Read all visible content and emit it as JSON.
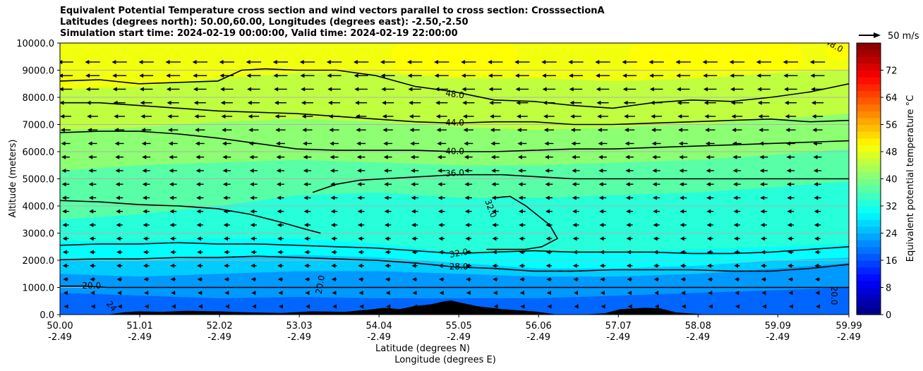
{
  "chart_data": {
    "type": "contour_cross_section",
    "title_lines": [
      "Equivalent Potential Temperature cross section and wind vectors parallel to cross section: CrosssectionA",
      "Latitudes (degrees north): 50.00,60.00, Longitudes (degrees east): -2.50,-2.50",
      "Simulation start time: 2024-02-19 00:00:00, Valid time: 2024-02-19 22:00:00"
    ],
    "ylabel": "Altitude (meters)",
    "xlabel_lat": "Latitude (degrees N)",
    "xlabel_lon": "Longitude (degrees E)",
    "ylim": [
      0,
      10000
    ],
    "y_ticks": [
      "0.0",
      "1000.0",
      "2000.0",
      "3000.0",
      "4000.0",
      "5000.0",
      "6000.0",
      "7000.0",
      "8000.0",
      "9000.0",
      "10000.0"
    ],
    "y_tick_values": [
      0,
      1000,
      2000,
      3000,
      4000,
      5000,
      6000,
      7000,
      8000,
      9000,
      10000
    ],
    "x_ticks_lat": [
      "50.00",
      "51.01",
      "52.02",
      "53.03",
      "54.04",
      "55.05",
      "56.06",
      "57.07",
      "58.08",
      "59.09",
      "59.99"
    ],
    "x_ticks_lon": [
      "-2.49",
      "-2.49",
      "-2.49",
      "-2.49",
      "-2.49",
      "-2.49",
      "-2.49",
      "-2.49",
      "-2.49",
      "-2.49",
      "-2.49"
    ],
    "x_tick_values": [
      50.0,
      51.01,
      52.02,
      53.03,
      54.04,
      55.05,
      56.06,
      57.07,
      58.08,
      59.09,
      59.99
    ],
    "xlim": [
      50.0,
      59.99
    ],
    "colorbar": {
      "label": "Equivalent potential temperature °C",
      "ticks": [
        "0",
        "8",
        "16",
        "24",
        "32",
        "40",
        "48",
        "56",
        "64",
        "72"
      ],
      "tick_values": [
        0,
        8,
        16,
        24,
        32,
        40,
        48,
        56,
        64,
        72
      ],
      "range": [
        0,
        80
      ]
    },
    "quiver_key": "50 m/s",
    "wind_direction": "southward along section",
    "filled_bands": [
      {
        "theta": 18,
        "top_alt": [
          800,
          700,
          600,
          650,
          600,
          600,
          600,
          700,
          800,
          900,
          1000
        ]
      },
      {
        "theta": 22,
        "top_alt": [
          1500,
          1400,
          1500,
          1600,
          1600,
          1500,
          1400,
          1400,
          1500,
          1700,
          1900
        ]
      },
      {
        "theta": 26,
        "top_alt": [
          2000,
          2000,
          2100,
          2200,
          2100,
          1900,
          1700,
          1700,
          1800,
          2000,
          2100
        ]
      },
      {
        "theta": 30,
        "top_alt": [
          2700,
          2700,
          2800,
          2800,
          2600,
          2300,
          2300,
          2300,
          2400,
          2500,
          2600
        ]
      },
      {
        "theta": 33,
        "top_alt": [
          3500,
          3700,
          4000,
          4400,
          4500,
          4300,
          4300,
          4400,
          4500,
          4700,
          4900
        ]
      },
      {
        "theta": 37,
        "top_alt": [
          5300,
          5500,
          5600,
          5700,
          5600,
          5500,
          5500,
          5600,
          5700,
          5900,
          6100
        ]
      },
      {
        "theta": 41,
        "top_alt": [
          6800,
          6900,
          7100,
          7200,
          7100,
          6900,
          6800,
          6900,
          7000,
          7200,
          7400
        ]
      },
      {
        "theta": 45,
        "top_alt": [
          8300,
          8400,
          8700,
          8900,
          8900,
          8700,
          8700,
          8600,
          8700,
          8900,
          9000
        ]
      },
      {
        "theta": 49,
        "top_alt": [
          10000,
          10000,
          10000,
          10000,
          10000,
          10000,
          10000,
          10000,
          10000,
          10000,
          10000
        ]
      }
    ],
    "yellow_patches": [
      {
        "theta": 50,
        "x": [
          54.2,
          55.8
        ],
        "alt": [
          8900,
          10000
        ]
      },
      {
        "theta": 50,
        "x": [
          57.2,
          59.4
        ],
        "alt": [
          9000,
          10000
        ]
      },
      {
        "theta": 50,
        "x": [
          59.7,
          59.99
        ],
        "alt": [
          9400,
          10000
        ]
      }
    ],
    "contours": [
      {
        "label": "20.0",
        "x": [
          50.0,
          50.3,
          50.6,
          50.9,
          51.3,
          51.7,
          52.1,
          52.5,
          52.9,
          53.3,
          53.7,
          54.1,
          54.5,
          54.9,
          55.3,
          55.7,
          56.1,
          56.5,
          56.9,
          57.3,
          57.7,
          58.1,
          58.5,
          58.9,
          59.3,
          59.99
        ],
        "alt": [
          1050,
          1050,
          1000,
          1000,
          1000,
          1000,
          1000,
          1000,
          1000,
          1000,
          1000,
          1000,
          1000,
          1000,
          1000,
          1000,
          1000,
          1000,
          1000,
          1000,
          1000,
          1000,
          1000,
          1000,
          1000,
          1000
        ]
      },
      {
        "label": "28.0",
        "x": [
          50.0,
          50.5,
          51.0,
          51.5,
          52.0,
          52.5,
          53.0,
          53.5,
          54.0,
          54.5,
          55.0,
          55.5,
          56.0,
          56.5,
          57.0,
          57.5,
          58.0,
          58.5,
          59.0,
          59.5,
          59.99
        ],
        "alt": [
          2020,
          2050,
          2050,
          2100,
          2100,
          2150,
          2100,
          2050,
          2000,
          1900,
          1750,
          1700,
          1600,
          1600,
          1650,
          1650,
          1650,
          1600,
          1600,
          1700,
          1850
        ]
      },
      {
        "label": "32.0",
        "x": [
          50.0,
          50.5,
          51.0,
          51.5,
          52.0,
          52.5,
          53.0,
          53.5,
          54.0,
          54.5,
          55.0,
          55.5,
          56.0,
          56.5,
          57.0,
          57.5,
          58.0,
          58.5,
          59.0,
          59.5,
          59.99
        ],
        "alt": [
          2550,
          2600,
          2600,
          2650,
          2600,
          2600,
          2550,
          2500,
          2450,
          2350,
          2250,
          2300,
          2350,
          2300,
          2300,
          2300,
          2250,
          2250,
          2300,
          2400,
          2500
        ]
      },
      {
        "label": "36.0",
        "x": [
          53.2,
          53.5,
          53.8,
          54.1,
          54.4,
          54.7,
          55.0,
          55.3,
          55.6,
          55.9,
          56.2,
          56.5,
          56.8,
          57.1,
          57.4,
          57.7,
          58.0,
          58.3,
          58.6,
          58.9,
          59.2,
          59.5,
          59.8,
          59.99
        ],
        "alt": [
          4500,
          4800,
          4950,
          5000,
          5050,
          5100,
          5150,
          5150,
          5150,
          5100,
          5050,
          5000,
          5000,
          5000,
          5000,
          5000,
          5000,
          5000,
          5000,
          5000,
          5000,
          5000,
          5000,
          5000
        ]
      },
      {
        "label": "40.0",
        "x": [
          50.0,
          50.5,
          51.0,
          51.5,
          52.0,
          52.5,
          53.0,
          53.5,
          54.0,
          54.5,
          55.0,
          55.5,
          56.0,
          56.5,
          57.0,
          57.5,
          58.0,
          58.5,
          59.0,
          59.5,
          59.99
        ],
        "alt": [
          6700,
          6750,
          6750,
          6650,
          6500,
          6300,
          6100,
          6050,
          6050,
          6050,
          6000,
          6000,
          6050,
          6100,
          6100,
          6150,
          6200,
          6250,
          6300,
          6350,
          6400
        ]
      },
      {
        "label": "44.0",
        "x": [
          50.0,
          50.5,
          51.0,
          51.5,
          52.0,
          52.5,
          53.0,
          53.5,
          54.0,
          54.5,
          55.0,
          55.5,
          56.0,
          56.5,
          57.0,
          57.5,
          58.0,
          58.5,
          59.0,
          59.5,
          59.99
        ],
        "alt": [
          7800,
          7800,
          7700,
          7600,
          7500,
          7450,
          7400,
          7300,
          7200,
          7100,
          7050,
          7100,
          7100,
          7000,
          7000,
          7050,
          7100,
          7150,
          7200,
          7100,
          7150
        ]
      },
      {
        "label": "48.0",
        "x": [
          50.0,
          50.5,
          51.0,
          51.5,
          52.0,
          52.3,
          52.6,
          53.0,
          53.5,
          54.0,
          54.5,
          55.0,
          55.5,
          56.0,
          56.5,
          57.0,
          57.5,
          58.0,
          58.5,
          59.0,
          59.5,
          59.99
        ],
        "alt": [
          8600,
          8650,
          8500,
          8550,
          8600,
          9000,
          9050,
          9000,
          9000,
          8800,
          8400,
          8200,
          7900,
          7850,
          7700,
          7600,
          7800,
          7900,
          7850,
          8000,
          8200,
          8500
        ]
      }
    ],
    "closed_contours": [
      {
        "label": "32.0",
        "x": [
          53.3,
          53.1,
          52.8,
          52.4,
          52.0,
          51.5,
          51.0,
          50.5,
          50.0
        ],
        "alt": [
          3000,
          3150,
          3400,
          3700,
          3900,
          4000,
          4050,
          4150,
          4200
        ]
      },
      {
        "label": "32.0",
        "x": [
          55.5,
          55.7,
          55.9,
          56.2,
          56.3,
          56.1,
          55.9,
          55.6,
          55.4
        ],
        "alt": [
          4300,
          4350,
          4000,
          3300,
          2800,
          2500,
          2400,
          2400,
          2400
        ]
      }
    ],
    "inline_labels": [
      {
        "text": "48.0",
        "x": 55.0,
        "alt": 8100,
        "angle": 8
      },
      {
        "text": "44.0",
        "x": 55.0,
        "alt": 7050,
        "angle": 0
      },
      {
        "text": "40.0",
        "x": 55.0,
        "alt": 6000,
        "angle": 0
      },
      {
        "text": "36.0",
        "x": 55.0,
        "alt": 5200,
        "angle": -3
      },
      {
        "text": "32.0",
        "x": 55.45,
        "alt": 3900,
        "angle": 70
      },
      {
        "text": "32.0",
        "x": 55.05,
        "alt": 2250,
        "angle": -10
      },
      {
        "text": "28.0",
        "x": 55.05,
        "alt": 1750,
        "angle": 0
      },
      {
        "text": "20.0",
        "x": 50.4,
        "alt": 1050,
        "angle": 0
      },
      {
        "text": "20.0",
        "x": 53.3,
        "alt": 1100,
        "angle": -80
      },
      {
        "text": "20.0",
        "x": 59.8,
        "alt": 700,
        "angle": 90
      },
      {
        "text": "24",
        "x": 50.65,
        "alt": 300,
        "angle": 50
      },
      {
        "text": "48.0",
        "x": 59.8,
        "alt": 9900,
        "angle": 30
      }
    ],
    "terrain": {
      "x": [
        50.0,
        50.6,
        50.8,
        51.0,
        51.3,
        51.6,
        52.0,
        52.4,
        52.8,
        53.2,
        53.6,
        53.9,
        54.1,
        54.3,
        54.5,
        54.7,
        54.85,
        54.95,
        55.1,
        55.3,
        55.6,
        56.0,
        56.3,
        56.6,
        56.9,
        57.1,
        57.4,
        57.6,
        57.8,
        58.2,
        59.0,
        59.99
      ],
      "alt": [
        0,
        0,
        80,
        120,
        100,
        140,
        120,
        80,
        60,
        120,
        100,
        180,
        250,
        200,
        320,
        380,
        480,
        520,
        420,
        300,
        200,
        120,
        0,
        0,
        50,
        200,
        250,
        230,
        80,
        0,
        0,
        0
      ]
    }
  }
}
